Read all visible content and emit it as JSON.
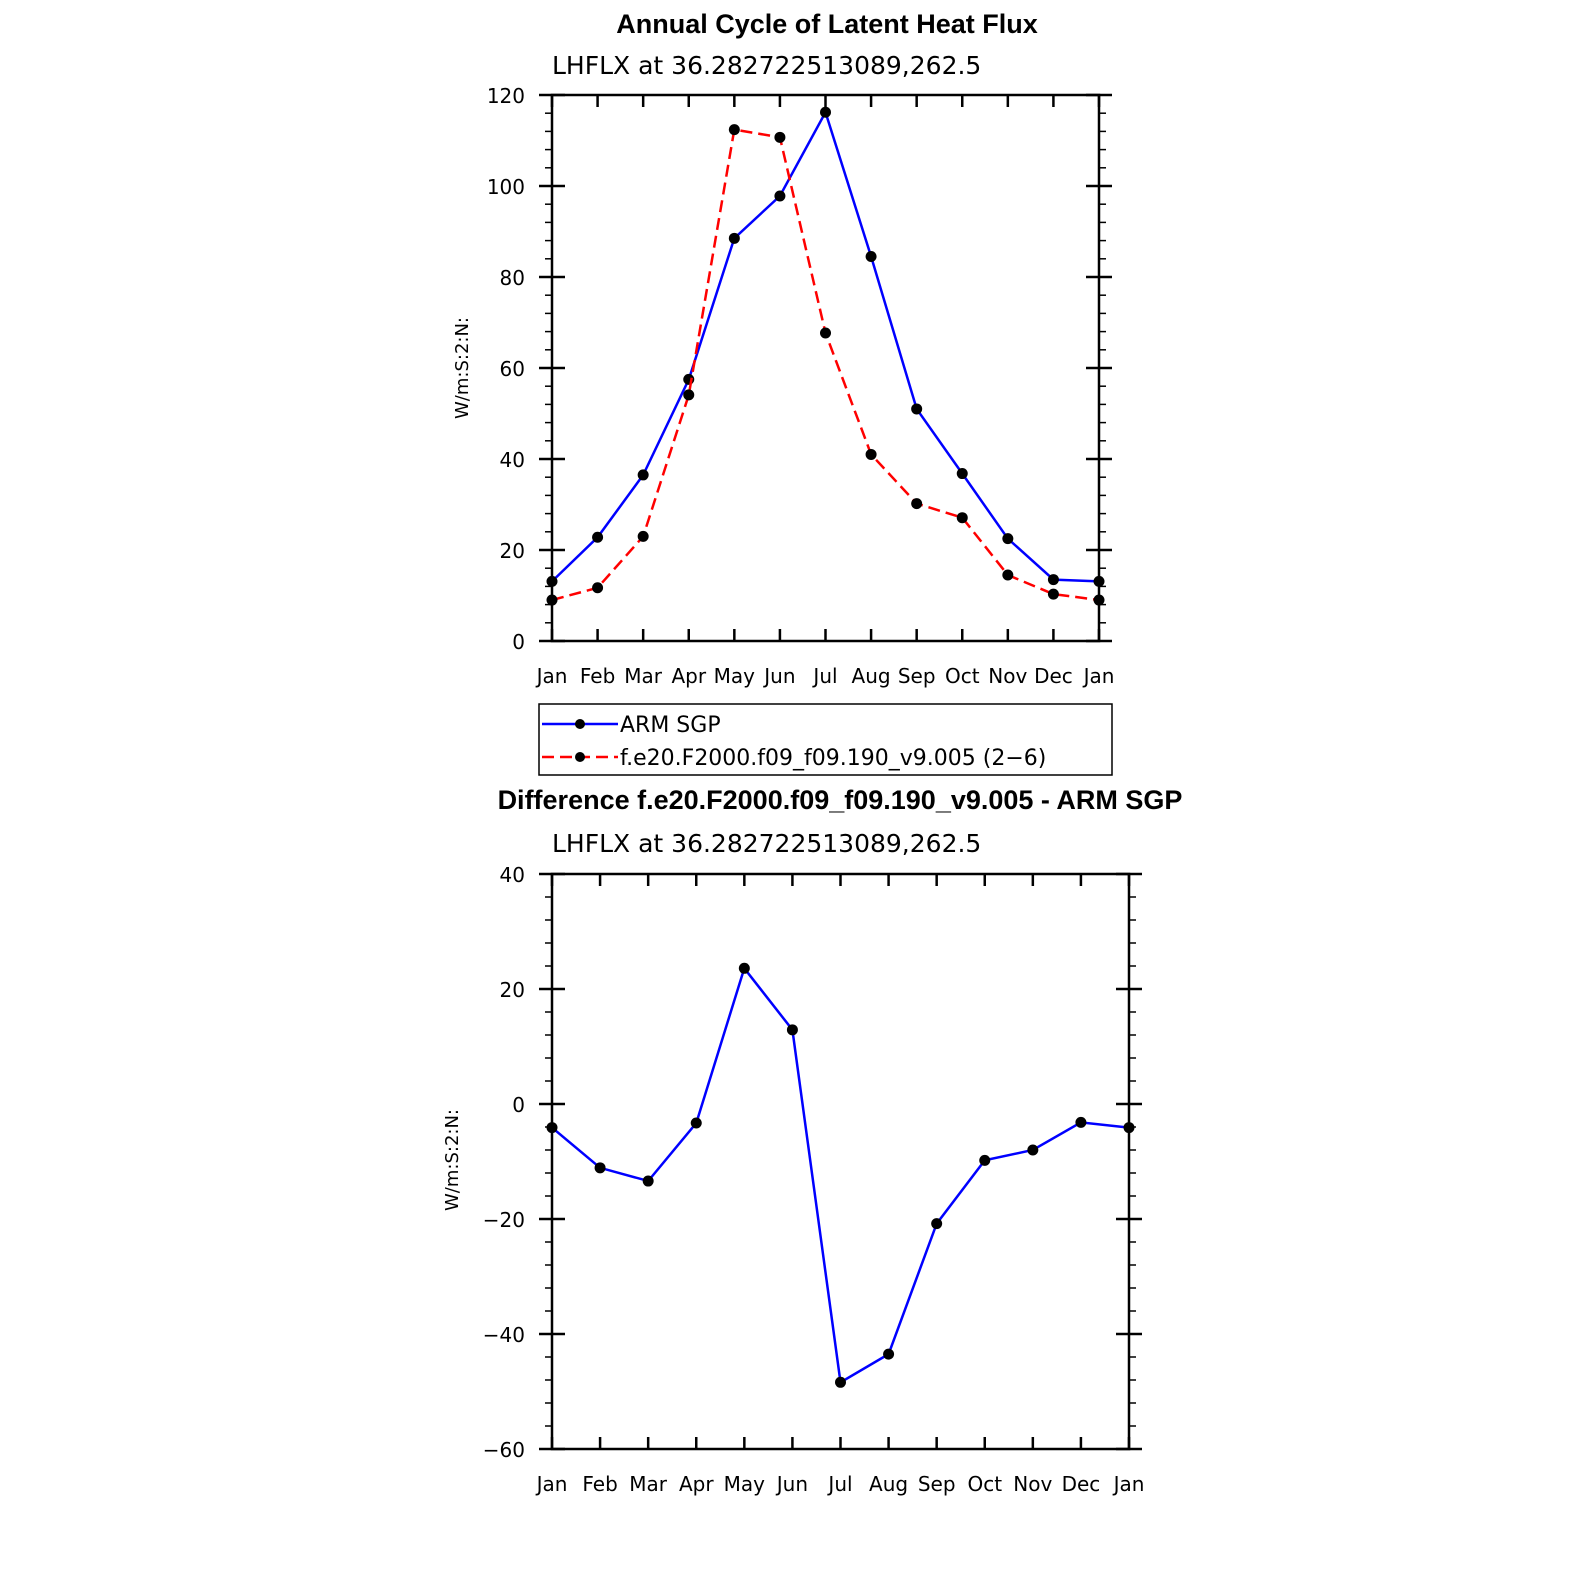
{
  "chart_data": [
    {
      "type": "line",
      "title": "Annual Cycle of Latent Heat Flux",
      "subtitle": "LHFLX at 36.282722513089,262.5",
      "ylabel": "W/m:S:2:N:",
      "categories": [
        "Jan",
        "Feb",
        "Mar",
        "Apr",
        "May",
        "Jun",
        "Jul",
        "Aug",
        "Sep",
        "Oct",
        "Nov",
        "Dec",
        "Jan"
      ],
      "ylim": [
        0,
        120
      ],
      "yticks": [
        "0",
        "20",
        "40",
        "60",
        "80",
        "100",
        "120"
      ],
      "series": [
        {
          "name": "ARM SGP",
          "color": "#0000ff",
          "dashed": false,
          "values": [
            13.1,
            22.8,
            36.5,
            57.5,
            88.5,
            97.8,
            116.2,
            84.5,
            51.0,
            36.8,
            22.5,
            13.5,
            13.1
          ]
        },
        {
          "name": "f.e20.F2000.f09_f09.190_v9.005 (2-6)",
          "color": "#ff0000",
          "dashed": true,
          "values": [
            9.0,
            11.7,
            23.0,
            54.1,
            112.4,
            110.7,
            67.7,
            41.0,
            30.2,
            27.1,
            14.5,
            10.3,
            9.0
          ]
        }
      ],
      "legend": [
        "ARM SGP",
        "f.e20.F2000.f09_f09.190_v9.005 (2−6)"
      ]
    },
    {
      "type": "line",
      "title": "Difference f.e20.F2000.f09_f09.190_v9.005 - ARM SGP",
      "subtitle": "LHFLX at 36.282722513089,262.5",
      "ylabel": "W/m:S:2:N:",
      "categories": [
        "Jan",
        "Feb",
        "Mar",
        "Apr",
        "May",
        "Jun",
        "Jul",
        "Aug",
        "Sep",
        "Oct",
        "Nov",
        "Dec",
        "Jan"
      ],
      "ylim": [
        -60,
        40
      ],
      "yticks": [
        "−60",
        "−40",
        "−20",
        "0",
        "20",
        "40"
      ],
      "series": [
        {
          "name": "Difference",
          "color": "#0000ff",
          "dashed": false,
          "values": [
            -4.1,
            -11.1,
            -13.4,
            -3.3,
            23.6,
            12.9,
            -48.4,
            -43.5,
            -20.8,
            -9.8,
            -8.0,
            -3.2,
            -4.1
          ]
        }
      ]
    }
  ]
}
